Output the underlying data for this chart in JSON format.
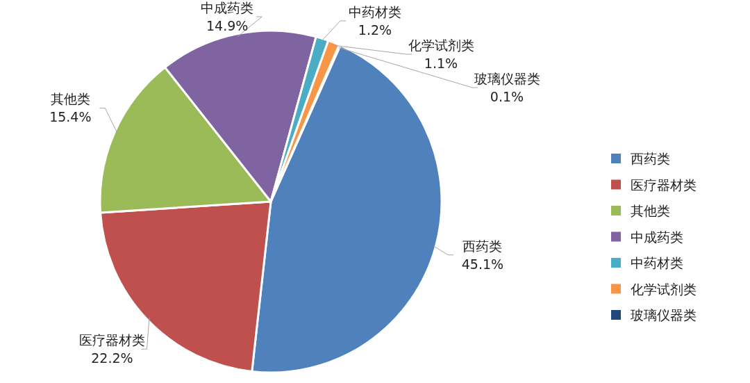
{
  "chart_data": {
    "type": "pie",
    "categories": [
      "西药类",
      "医疗器材类",
      "其他类",
      "中成药类",
      "中药材类",
      "化学试剂类",
      "玻璃仪器类"
    ],
    "values": [
      45.1,
      22.2,
      15.4,
      14.9,
      1.2,
      1.1,
      0.1
    ],
    "colors": [
      "#4f81bd",
      "#c0504d",
      "#9bbb59",
      "#8064a2",
      "#4bacc6",
      "#f79646",
      "#1f497d"
    ],
    "value_labels": [
      "45.1%",
      "22.2%",
      "15.4%",
      "14.9%",
      "1.2%",
      "1.1%",
      "0.1%"
    ],
    "legend": "right"
  }
}
